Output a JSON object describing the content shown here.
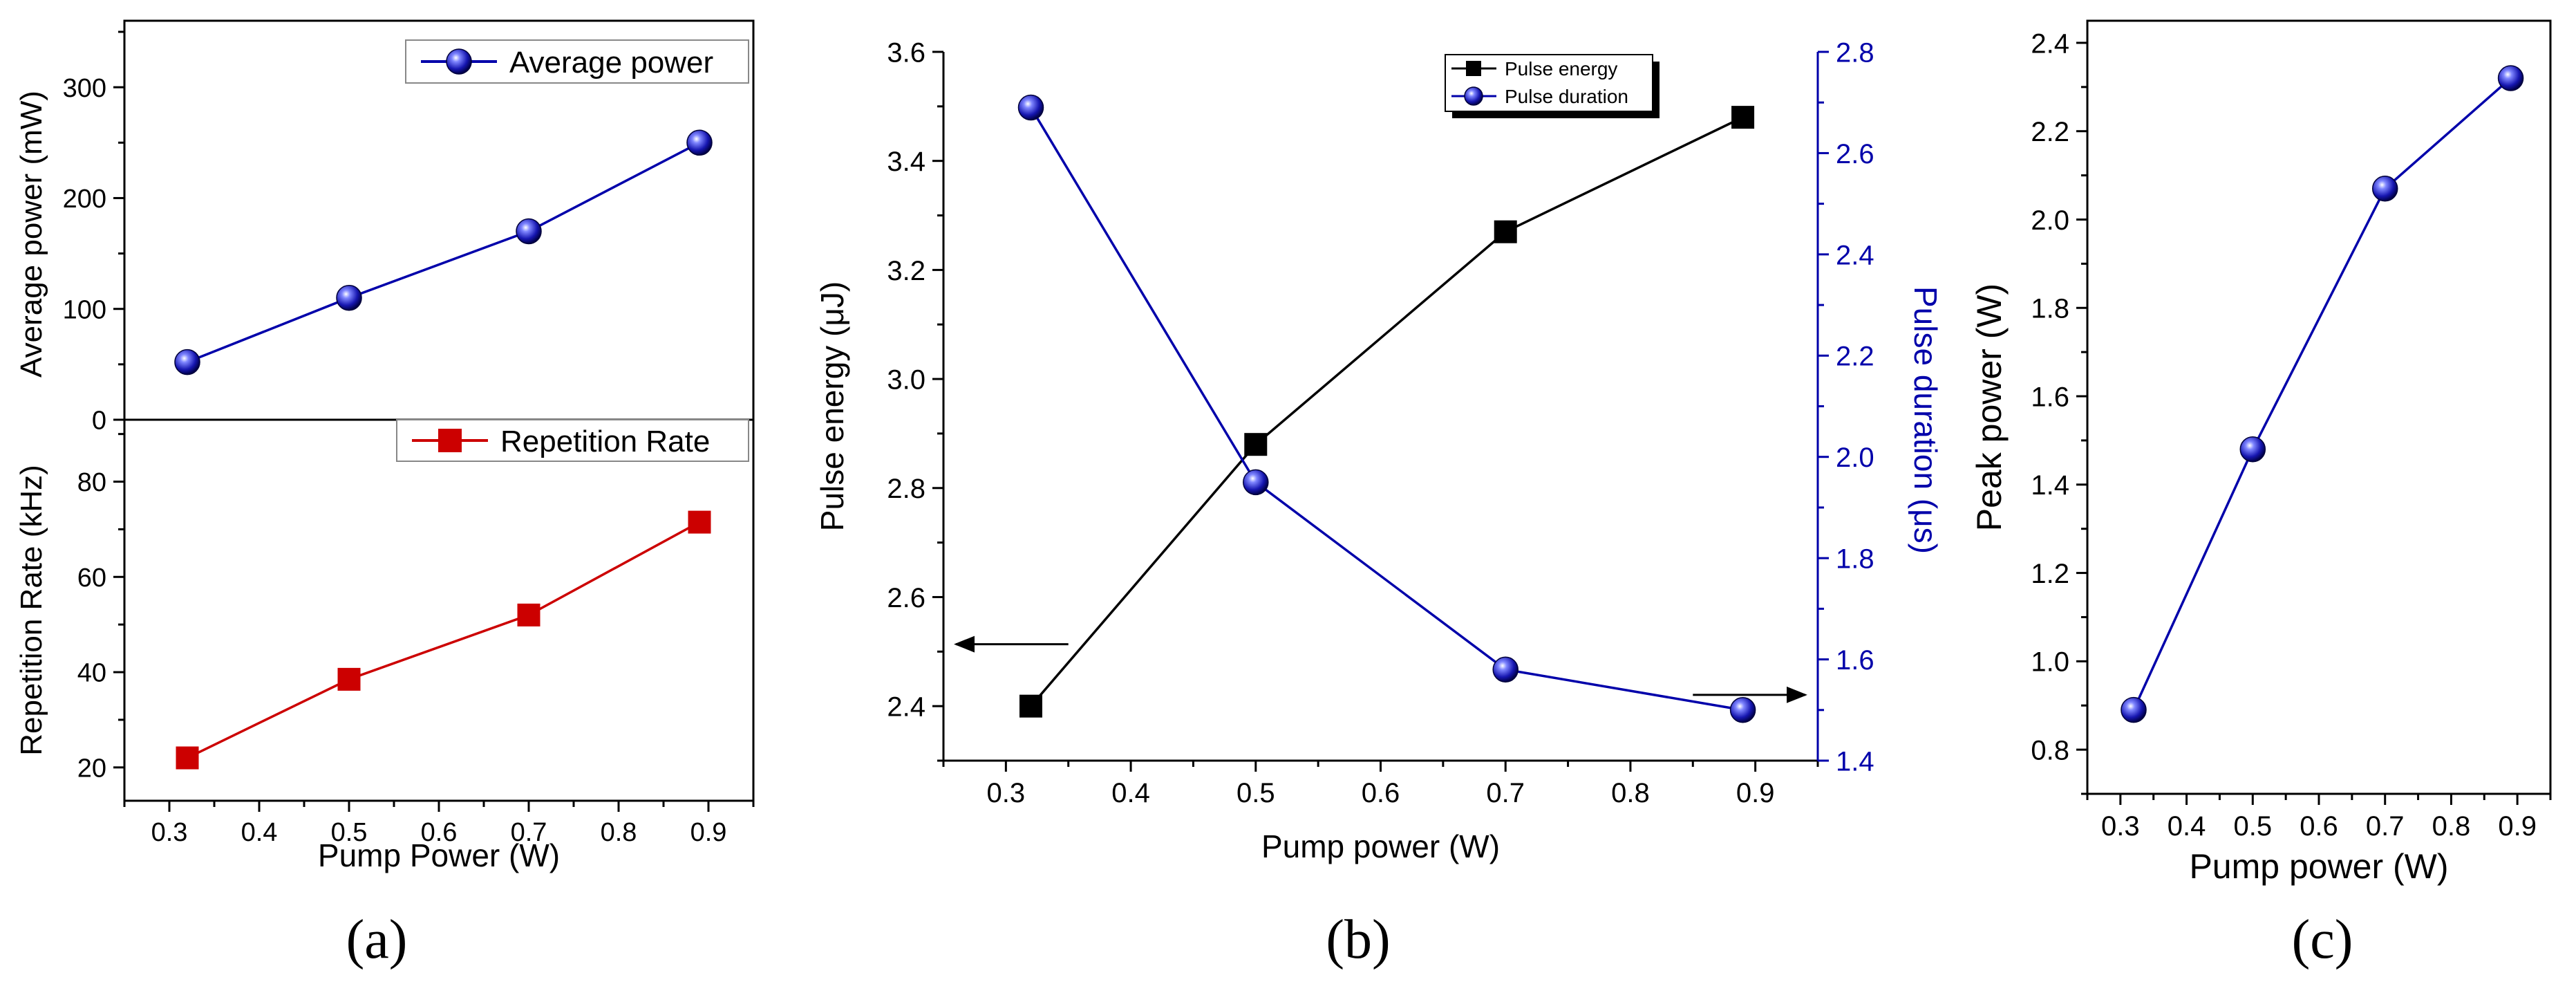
{
  "colors": {
    "axis": "#000000",
    "blue": "#0000AA",
    "marker_blue": "#1a1ab4",
    "red": "#CC0000",
    "black": "#000000"
  },
  "panels": {
    "a": {
      "label": "(a)"
    },
    "b": {
      "label": "(b)"
    },
    "c": {
      "label": "(c)"
    }
  },
  "chart_data": [
    {
      "id": "a_top",
      "type": "line",
      "panel": "a",
      "x": [
        0.32,
        0.5,
        0.7,
        0.89
      ],
      "series": [
        {
          "name": "Average power",
          "values": [
            52,
            110,
            170,
            250
          ],
          "color": "#0000AA",
          "marker": "sphere"
        }
      ],
      "xlabel": "",
      "ylabel": "Average power (mW)",
      "xlim": [
        0.25,
        0.95
      ],
      "ylim": [
        0,
        360
      ],
      "yticks": [
        0,
        100,
        200,
        300
      ],
      "legend": "top-right"
    },
    {
      "id": "a_bottom",
      "type": "line",
      "panel": "a",
      "x": [
        0.32,
        0.5,
        0.7,
        0.89
      ],
      "series": [
        {
          "name": "Repetition Rate",
          "values": [
            22,
            38.5,
            52,
            71.5
          ],
          "color": "#CC0000",
          "marker": "square"
        }
      ],
      "xlabel": "Pump Power (W)",
      "ylabel": "Repetition Rate (kHz)",
      "xlim": [
        0.25,
        0.95
      ],
      "ylim": [
        13,
        93
      ],
      "xticks": [
        0.3,
        0.4,
        0.5,
        0.6,
        0.7,
        0.8,
        0.9
      ],
      "xtick_labels": [
        "0.3",
        "0.4",
        "0.5",
        "0.6",
        "0.7",
        "0.8",
        "0.9"
      ],
      "yticks": [
        20,
        40,
        60,
        80
      ],
      "legend": "top-right"
    },
    {
      "id": "b",
      "type": "line",
      "panel": "b",
      "x": [
        0.32,
        0.5,
        0.7,
        0.89
      ],
      "series": [
        {
          "name": "Pulse energy",
          "values": [
            2.4,
            2.88,
            3.27,
            3.48
          ],
          "color": "#000000",
          "marker": "square",
          "axis": "left"
        },
        {
          "name": "Pulse duration",
          "values": [
            2.69,
            1.95,
            1.58,
            1.5
          ],
          "color": "#0000AA",
          "marker": "sphere",
          "axis": "right"
        }
      ],
      "xlabel": "Pump power (W)",
      "ylabel": "Pulse energy (μJ)",
      "ylabel_right": "Pulse duration (μs)",
      "xlim": [
        0.25,
        0.95
      ],
      "ylim": [
        2.3,
        3.6
      ],
      "ylim_right": [
        1.4,
        2.8
      ],
      "xticks": [
        0.3,
        0.4,
        0.5,
        0.6,
        0.7,
        0.8,
        0.9
      ],
      "xtick_labels": [
        "0.3",
        "0.4",
        "0.5",
        "0.6",
        "0.7",
        "0.8",
        "0.9"
      ],
      "yticks": [
        2.4,
        2.6,
        2.8,
        3.0,
        3.2,
        3.4,
        3.6
      ],
      "ytick_labels": [
        "2.4",
        "2.6",
        "2.8",
        "3.0",
        "3.2",
        "3.4",
        "3.6"
      ],
      "yticks_right": [
        1.4,
        1.6,
        1.8,
        2.0,
        2.2,
        2.4,
        2.6,
        2.8
      ],
      "ytick_labels_right": [
        "1.4",
        "1.6",
        "1.8",
        "2.0",
        "2.2",
        "2.4",
        "2.6",
        "2.8"
      ],
      "annotations": [
        {
          "type": "arrow",
          "direction": "left",
          "target_axis": "left",
          "from_x": 0.35,
          "to_x": 0.26,
          "y_right": 1.63
        },
        {
          "type": "arrow",
          "direction": "right",
          "target_axis": "right",
          "from_x": 0.85,
          "to_x": 0.94,
          "y_right": 1.53
        }
      ],
      "legend": "top-right"
    },
    {
      "id": "c",
      "type": "line",
      "panel": "c",
      "x": [
        0.32,
        0.5,
        0.7,
        0.89
      ],
      "series": [
        {
          "name": "Peak power",
          "values": [
            0.89,
            1.48,
            2.07,
            2.32
          ],
          "color": "#0000AA",
          "marker": "sphere"
        }
      ],
      "xlabel": "Pump power (W)",
      "ylabel": "Peak power (W)",
      "xlim": [
        0.25,
        0.95
      ],
      "ylim": [
        0.7,
        2.45
      ],
      "xticks": [
        0.3,
        0.4,
        0.5,
        0.6,
        0.7,
        0.8,
        0.9
      ],
      "xtick_labels": [
        "0.3",
        "0.4",
        "0.5",
        "0.6",
        "0.7",
        "0.8",
        "0.9"
      ],
      "yticks": [
        0.8,
        1.0,
        1.2,
        1.4,
        1.6,
        1.8,
        2.0,
        2.2,
        2.4
      ],
      "ytick_labels": [
        "0.8",
        "1.0",
        "1.2",
        "1.4",
        "1.6",
        "1.8",
        "2.0",
        "2.2",
        "2.4"
      ],
      "legend": "none"
    }
  ]
}
